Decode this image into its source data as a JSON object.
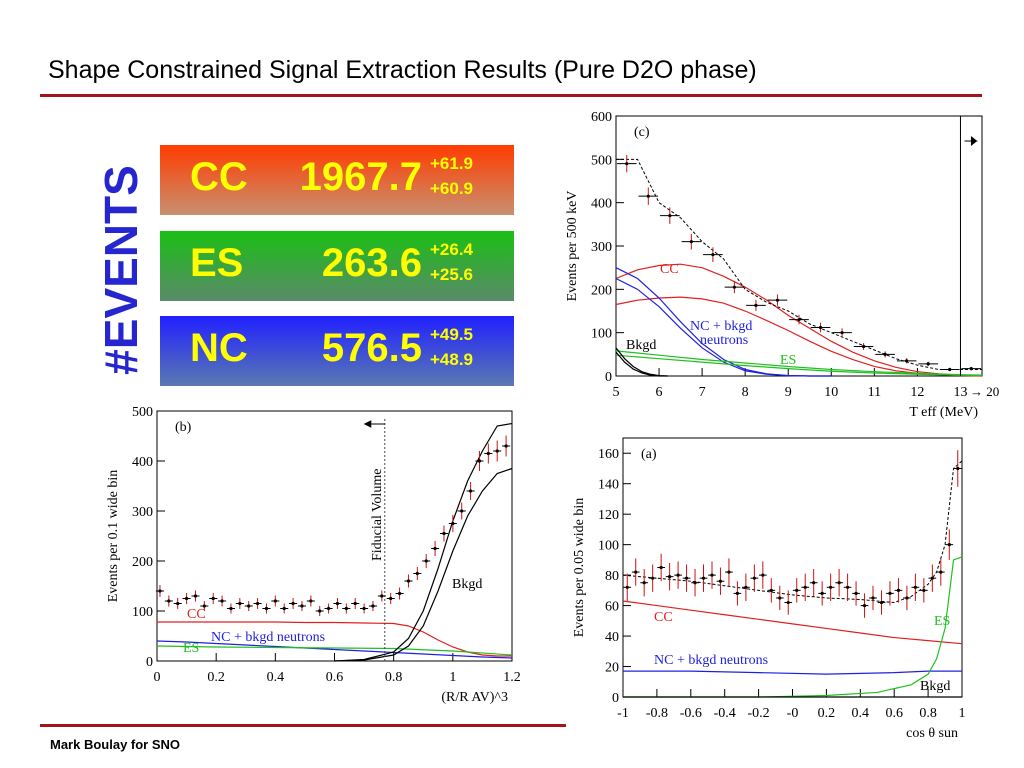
{
  "slide": {
    "title": "Shape Constrained Signal Extraction Results (Pure D2O phase)",
    "footer": "Mark Boulay for SNO",
    "vertical_title": "#EVENTS",
    "colors": {
      "rule": "#a3141c",
      "events_title": "#2626d0",
      "box_text": "#ffff00"
    }
  },
  "results": [
    {
      "label": "CC",
      "value": "1967.7",
      "err_plus": "+61.9",
      "err_minus": "+60.9"
    },
    {
      "label": "ES",
      "value": "263.6",
      "err_plus": "+26.4",
      "err_minus": "+25.6"
    },
    {
      "label": "NC",
      "value": "576.5",
      "err_plus": "+49.5",
      "err_minus": "+48.9"
    }
  ],
  "chart_data": [
    {
      "panel": "(c)",
      "type": "line",
      "xlabel": "T_eff (MeV)",
      "ylabel": "Events per 500 keV",
      "xlim": [
        5,
        13.5
      ],
      "ylim": [
        0,
        600
      ],
      "x_ticks": [
        "5",
        "6",
        "7",
        "8",
        "9",
        "10",
        "11",
        "12",
        "13"
      ],
      "y_ticks": [
        "0",
        "100",
        "200",
        "300",
        "400",
        "500",
        "600"
      ],
      "overflow_label": "→ 20",
      "data_points": {
        "x": [
          5.25,
          5.75,
          6.25,
          6.75,
          7.25,
          7.75,
          8.25,
          8.75,
          9.25,
          9.75,
          10.25,
          10.75,
          11.25,
          11.75,
          12.25,
          12.75,
          13.25
        ],
        "y": [
          490,
          415,
          370,
          310,
          280,
          205,
          163,
          175,
          130,
          112,
          100,
          68,
          50,
          35,
          28,
          15,
          17
        ],
        "err": [
          20,
          20,
          19,
          18,
          17,
          14,
          13,
          13,
          11,
          11,
          10,
          8,
          7,
          6,
          5,
          4,
          4
        ]
      },
      "total_fit": {
        "x": [
          5,
          5.5,
          6,
          6.5,
          7,
          7.5,
          8,
          8.5,
          9,
          9.5,
          10,
          10.5,
          11,
          11.5,
          12,
          12.5,
          13,
          13.5
        ],
        "y": [
          500,
          500,
          400,
          365,
          310,
          270,
          200,
          170,
          150,
          120,
          100,
          80,
          60,
          40,
          25,
          15,
          15,
          15
        ]
      },
      "series": [
        {
          "name": "CC",
          "color": "#e02020",
          "x": [
            5,
            5.5,
            6,
            6.5,
            7,
            7.5,
            8,
            8.5,
            9,
            9.5,
            10,
            10.5,
            11,
            11.5,
            12,
            12.5,
            13,
            13.5
          ],
          "y": [
            225,
            245,
            255,
            258,
            250,
            230,
            205,
            175,
            140,
            110,
            80,
            55,
            35,
            20,
            10,
            5,
            2,
            1
          ]
        },
        {
          "name": "",
          "color": "#e02020",
          "x": [
            5,
            5.5,
            6,
            6.5,
            7,
            7.5,
            8,
            8.5,
            9,
            9.5,
            10,
            10.5,
            11,
            11.5,
            12,
            12.5,
            13,
            13.5
          ],
          "y": [
            165,
            175,
            180,
            182,
            178,
            168,
            150,
            128,
            105,
            80,
            57,
            38,
            22,
            12,
            6,
            3,
            1,
            0
          ]
        },
        {
          "name": "NC + bkgd neutrons",
          "color": "#2020e0",
          "x": [
            5,
            5.5,
            6,
            6.5,
            7,
            7.5,
            8,
            8.5,
            9,
            9.5,
            10
          ],
          "y": [
            250,
            225,
            180,
            125,
            75,
            38,
            15,
            5,
            1,
            0,
            0
          ]
        },
        {
          "name": "",
          "color": "#2020e0",
          "x": [
            5,
            5.5,
            6,
            6.5,
            7,
            7.5,
            8,
            8.5,
            9,
            9.5,
            10
          ],
          "y": [
            225,
            200,
            160,
            110,
            65,
            32,
            12,
            4,
            1,
            0,
            0
          ]
        },
        {
          "name": "ES",
          "color": "#20c020",
          "x": [
            5,
            6,
            7,
            8,
            9,
            10,
            11,
            12,
            13,
            13.5
          ],
          "y": [
            58,
            48,
            38,
            30,
            22,
            15,
            10,
            6,
            3,
            2
          ]
        },
        {
          "name": "",
          "color": "#20c020",
          "x": [
            5,
            6,
            7,
            8,
            9,
            10,
            11,
            12,
            13,
            13.5
          ],
          "y": [
            48,
            40,
            32,
            24,
            17,
            11,
            7,
            4,
            2,
            1
          ]
        },
        {
          "name": "Bkgd",
          "color": "#000000",
          "x": [
            5,
            5.2,
            5.4,
            5.6,
            5.8,
            6,
            6.2
          ],
          "y": [
            65,
            40,
            22,
            10,
            4,
            1,
            0
          ]
        },
        {
          "name": "",
          "color": "#000000",
          "x": [
            5,
            5.2,
            5.4,
            5.6,
            5.8,
            6,
            6.2
          ],
          "y": [
            55,
            32,
            16,
            7,
            2,
            0,
            0
          ]
        }
      ]
    },
    {
      "panel": "(b)",
      "type": "line",
      "xlabel": "(R/R_AV)^3",
      "ylabel": "Events per 0.1 wide bin",
      "xlim": [
        0,
        1.2
      ],
      "ylim": [
        0,
        500
      ],
      "x_ticks": [
        "0",
        "0.2",
        "0.4",
        "0.6",
        "0.8",
        "1",
        "1.2"
      ],
      "y_ticks": [
        "0",
        "100",
        "200",
        "300",
        "400",
        "500"
      ],
      "annotation": "Fiducial Volume",
      "fiducial_x": 0.77,
      "data_points": {
        "x": [
          0.01,
          0.04,
          0.07,
          0.1,
          0.13,
          0.16,
          0.19,
          0.22,
          0.25,
          0.28,
          0.31,
          0.34,
          0.37,
          0.4,
          0.43,
          0.46,
          0.49,
          0.52,
          0.55,
          0.58,
          0.61,
          0.64,
          0.67,
          0.7,
          0.73,
          0.76,
          0.79,
          0.82,
          0.85,
          0.88,
          0.91,
          0.94,
          0.97,
          1.0,
          1.03,
          1.06,
          1.09,
          1.12,
          1.15,
          1.18
        ],
        "y": [
          140,
          120,
          115,
          125,
          130,
          110,
          125,
          120,
          105,
          115,
          110,
          115,
          105,
          120,
          105,
          115,
          110,
          120,
          100,
          105,
          115,
          105,
          115,
          105,
          110,
          130,
          125,
          135,
          160,
          175,
          200,
          225,
          255,
          275,
          300,
          340,
          400,
          415,
          420,
          430
        ],
        "err": [
          12,
          11,
          11,
          11,
          11,
          10,
          11,
          11,
          10,
          11,
          10,
          11,
          10,
          11,
          10,
          11,
          10,
          11,
          10,
          10,
          11,
          10,
          11,
          10,
          10,
          11,
          11,
          12,
          13,
          13,
          14,
          15,
          16,
          17,
          17,
          18,
          20,
          20,
          21,
          21
        ]
      },
      "series": [
        {
          "name": "CC",
          "color": "#e02020",
          "x": [
            0,
            0.1,
            0.2,
            0.3,
            0.4,
            0.5,
            0.6,
            0.7,
            0.8,
            0.85,
            0.9,
            0.95,
            1.0,
            1.05,
            1.1,
            1.15,
            1.2
          ],
          "y": [
            78,
            78,
            78,
            78,
            78,
            77,
            77,
            76,
            75,
            70,
            58,
            42,
            28,
            18,
            12,
            10,
            10
          ]
        },
        {
          "name": "NC + bkgd neutrons",
          "color": "#2020e0",
          "x": [
            0,
            0.1,
            0.2,
            0.3,
            0.4,
            0.5,
            0.6,
            0.7,
            0.8,
            0.9,
            1.0,
            1.1,
            1.2
          ],
          "y": [
            40,
            38,
            35,
            32,
            29,
            26,
            23,
            20,
            17,
            14,
            11,
            8,
            6
          ]
        },
        {
          "name": "ES",
          "color": "#20c020",
          "x": [
            0,
            0.2,
            0.4,
            0.6,
            0.8,
            1.0,
            1.2
          ],
          "y": [
            30,
            28,
            27,
            26,
            25,
            20,
            12
          ]
        },
        {
          "name": "Bkgd",
          "color": "#000000",
          "x": [
            0.6,
            0.7,
            0.8,
            0.85,
            0.9,
            0.95,
            1.0,
            1.05,
            1.1,
            1.15,
            1.2
          ],
          "y": [
            0,
            3,
            18,
            45,
            100,
            185,
            280,
            360,
            420,
            470,
            475
          ]
        },
        {
          "name": "",
          "color": "#000000",
          "x": [
            0.6,
            0.7,
            0.8,
            0.85,
            0.9,
            0.95,
            1.0,
            1.05,
            1.1,
            1.15,
            1.2
          ],
          "y": [
            0,
            2,
            12,
            30,
            70,
            140,
            220,
            290,
            340,
            375,
            385
          ]
        }
      ]
    },
    {
      "panel": "(a)",
      "type": "line",
      "xlabel": "cos θ_sun",
      "ylabel": "Events per 0.05 wide bin",
      "xlim": [
        -1,
        1
      ],
      "ylim": [
        0,
        170
      ],
      "x_ticks": [
        "-1",
        "-0.8",
        "-0.6",
        "-0.4",
        "-0.2",
        "-0",
        "0.2",
        "0.4",
        "0.6",
        "0.8",
        "1"
      ],
      "y_ticks": [
        "0",
        "20",
        "40",
        "60",
        "80",
        "100",
        "120",
        "140",
        "160"
      ],
      "data_points": {
        "x": [
          -0.975,
          -0.925,
          -0.875,
          -0.825,
          -0.775,
          -0.725,
          -0.675,
          -0.625,
          -0.575,
          -0.525,
          -0.475,
          -0.425,
          -0.375,
          -0.325,
          -0.275,
          -0.225,
          -0.175,
          -0.125,
          -0.075,
          -0.025,
          0.025,
          0.075,
          0.125,
          0.175,
          0.225,
          0.275,
          0.325,
          0.375,
          0.425,
          0.475,
          0.525,
          0.575,
          0.625,
          0.675,
          0.725,
          0.775,
          0.825,
          0.875,
          0.925,
          0.975
        ],
        "y": [
          72,
          82,
          75,
          78,
          85,
          79,
          80,
          78,
          75,
          78,
          80,
          76,
          82,
          68,
          72,
          78,
          80,
          70,
          65,
          62,
          70,
          72,
          75,
          68,
          72,
          75,
          72,
          68,
          60,
          65,
          62,
          68,
          70,
          65,
          72,
          70,
          78,
          82,
          100,
          150
        ],
        "err": [
          9,
          9,
          9,
          9,
          9,
          9,
          9,
          9,
          9,
          9,
          9,
          9,
          9,
          8,
          9,
          9,
          9,
          8,
          8,
          8,
          8,
          9,
          9,
          8,
          9,
          9,
          9,
          8,
          8,
          8,
          8,
          8,
          8,
          8,
          9,
          8,
          9,
          9,
          10,
          12
        ]
      },
      "series": [
        {
          "name": "CC",
          "color": "#e02020",
          "x": [
            -1,
            -0.8,
            -0.6,
            -0.4,
            -0.2,
            0,
            0.2,
            0.4,
            0.6,
            0.8,
            1
          ],
          "y": [
            63,
            60,
            57,
            54,
            51,
            48,
            45,
            42,
            39,
            37,
            35
          ]
        },
        {
          "name": "NC + bkgd neutrons",
          "color": "#2020e0",
          "x": [
            -1,
            -0.6,
            -0.2,
            0.2,
            0.6,
            0.8,
            1
          ],
          "y": [
            17,
            17,
            16,
            15,
            16,
            17,
            17
          ]
        },
        {
          "name": "ES",
          "color": "#20c020",
          "x": [
            -1,
            -0.6,
            -0.2,
            0.2,
            0.5,
            0.7,
            0.8,
            0.85,
            0.9,
            0.95,
            1
          ],
          "y": [
            0,
            0,
            0,
            1,
            3,
            8,
            15,
            25,
            45,
            90,
            92
          ]
        },
        {
          "name": "Bkgd",
          "color": "#000000",
          "x": [
            -1,
            0,
            1
          ],
          "y": [
            0,
            0,
            0
          ]
        }
      ],
      "total_fit": {
        "x": [
          -1,
          -0.8,
          -0.6,
          -0.4,
          -0.2,
          0,
          0.2,
          0.4,
          0.6,
          0.7,
          0.8,
          0.85,
          0.9,
          0.95,
          1
        ],
        "y": [
          80,
          78,
          76,
          73,
          70,
          67,
          65,
          64,
          62,
          66,
          74,
          82,
          100,
          150,
          155
        ]
      }
    }
  ]
}
